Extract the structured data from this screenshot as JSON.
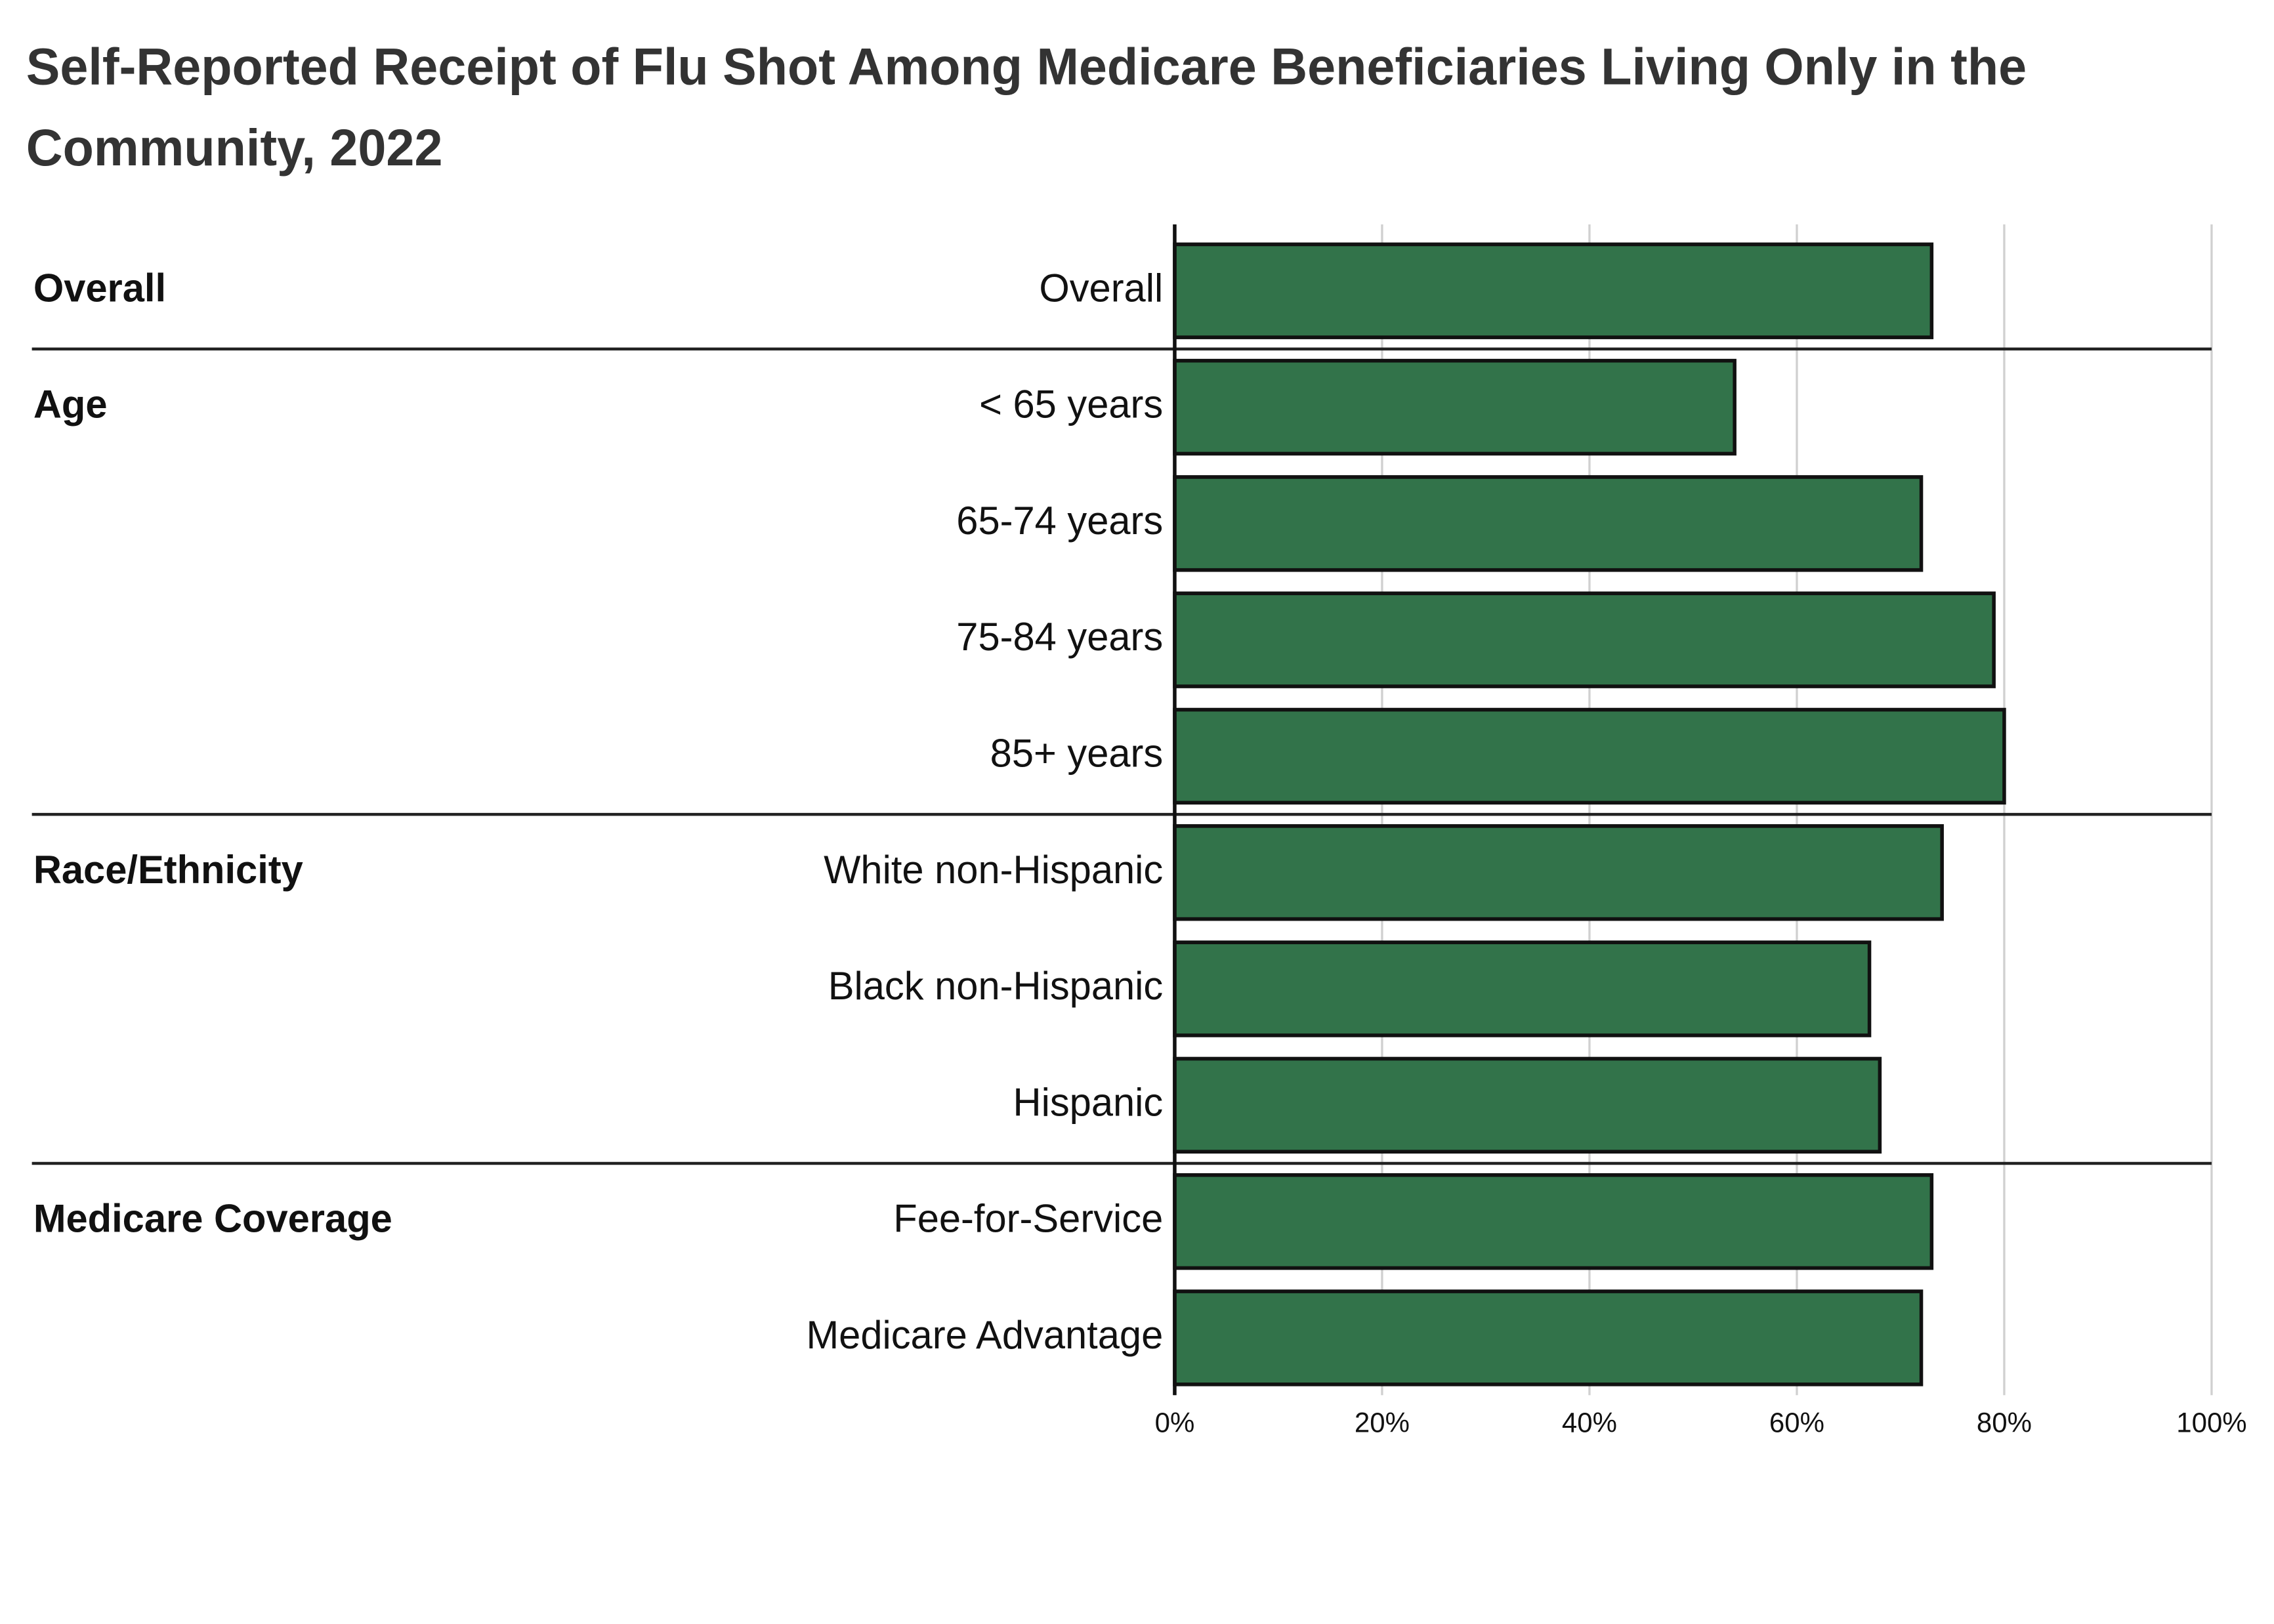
{
  "chart_data": {
    "type": "bar",
    "orientation": "horizontal",
    "title": "Self-Reported Receipt of Flu Shot Among Medicare Beneficiaries Living Only in the Community, 2022",
    "categories": [
      "Overall",
      "< 65 years",
      "65-74 years",
      "75-84 years",
      "85+ years",
      "White non-Hispanic",
      "Black non-Hispanic",
      "Hispanic",
      "Fee-for-Service",
      "Medicare Advantage"
    ],
    "groups": [
      "Overall",
      "Age",
      null,
      null,
      null,
      "Race/Ethnicity",
      null,
      null,
      "Medicare Coverage",
      null
    ],
    "values": [
      73,
      54,
      72,
      79,
      80,
      74,
      67,
      68,
      73,
      72
    ],
    "color": "#32734a",
    "xlim": [
      0,
      100
    ],
    "xticks": [
      {
        "value": 0,
        "label": "0%"
      },
      {
        "value": 20,
        "label": "20%"
      },
      {
        "value": 40,
        "label": "40%"
      },
      {
        "value": 60,
        "label": "60%"
      },
      {
        "value": 80,
        "label": "80%"
      },
      {
        "value": 100,
        "label": "100%"
      }
    ],
    "grid": true
  }
}
